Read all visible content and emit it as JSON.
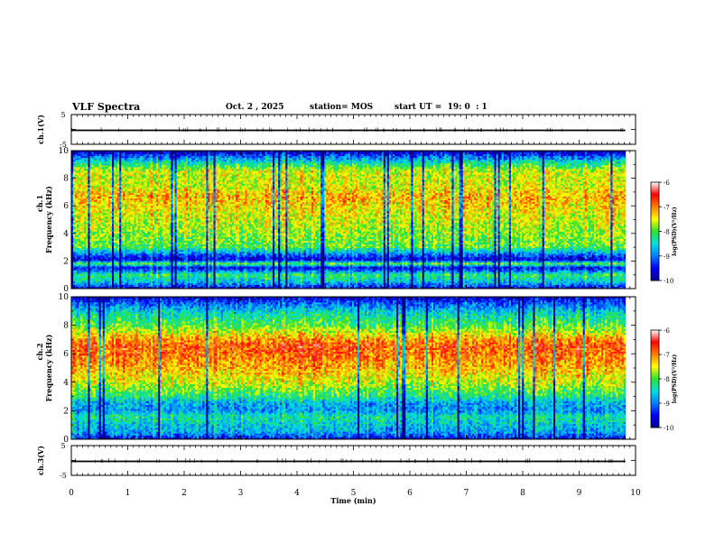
{
  "header": {
    "title": "VLF Spectra",
    "date": "Oct. 2 , 2025",
    "station": "station= MOS",
    "start": "start UT =  19: 0  : 1"
  },
  "chart_data": [
    {
      "type": "line",
      "title": "",
      "ylabel": "ch.1(V)",
      "xlim": [
        0,
        10
      ],
      "ylim": [
        -5,
        5
      ],
      "yticks": [
        "5",
        "-5"
      ],
      "series": [
        {
          "x": [
            0,
            9.82
          ],
          "values": [
            0,
            0
          ]
        }
      ]
    },
    {
      "type": "heatmap",
      "ylabel_top": "ch.1",
      "ylabel": "Frequency (kHz)",
      "xlim": [
        0,
        10
      ],
      "ylim": [
        0,
        10
      ],
      "data_xmax": 9.82,
      "yticks": [
        "0",
        "2",
        "4",
        "6",
        "8",
        "10"
      ],
      "colorbar": {
        "label": "log(PSD)(V²/Hz)",
        "ticks": [
          "-6",
          "-7",
          "-8",
          "-9",
          "-10"
        ],
        "range": [
          -10,
          -6
        ]
      },
      "profile": [
        {
          "f": 0.0,
          "v": -9.6
        },
        {
          "f": 0.5,
          "v": -8.6
        },
        {
          "f": 1.0,
          "v": -8.2
        },
        {
          "f": 1.5,
          "v": -9.6
        },
        {
          "f": 1.8,
          "v": -8.0
        },
        {
          "f": 2.1,
          "v": -9.7
        },
        {
          "f": 2.5,
          "v": -9.0
        },
        {
          "f": 3.0,
          "v": -8.0
        },
        {
          "f": 4.0,
          "v": -7.8
        },
        {
          "f": 5.0,
          "v": -7.6
        },
        {
          "f": 6.0,
          "v": -7.4
        },
        {
          "f": 6.6,
          "v": -7.2
        },
        {
          "f": 7.5,
          "v": -7.6
        },
        {
          "f": 8.5,
          "v": -7.6
        },
        {
          "f": 9.0,
          "v": -8.2
        },
        {
          "f": 9.5,
          "v": -9.0
        },
        {
          "f": 10.0,
          "v": -9.9
        }
      ]
    },
    {
      "type": "heatmap",
      "ylabel_top": "ch.2",
      "ylabel": "Frequency (kHz)",
      "xlim": [
        0,
        10
      ],
      "ylim": [
        0,
        10
      ],
      "data_xmax": 9.82,
      "yticks": [
        "0",
        "2",
        "4",
        "6",
        "8",
        "10"
      ],
      "colorbar": {
        "label": "log(PSD)(V²/Hz)",
        "ticks": [
          "-6",
          "-7",
          "-8",
          "-9",
          "-10"
        ],
        "range": [
          -10,
          -6
        ]
      },
      "profile": [
        {
          "f": 0.0,
          "v": -9.5
        },
        {
          "f": 0.5,
          "v": -8.8
        },
        {
          "f": 1.0,
          "v": -8.6
        },
        {
          "f": 1.6,
          "v": -8.3
        },
        {
          "f": 2.0,
          "v": -8.9
        },
        {
          "f": 2.6,
          "v": -8.7
        },
        {
          "f": 3.0,
          "v": -8.2
        },
        {
          "f": 4.0,
          "v": -7.6
        },
        {
          "f": 5.0,
          "v": -7.2
        },
        {
          "f": 6.0,
          "v": -6.9
        },
        {
          "f": 6.6,
          "v": -6.8
        },
        {
          "f": 7.2,
          "v": -7.3
        },
        {
          "f": 8.0,
          "v": -8.0
        },
        {
          "f": 8.8,
          "v": -8.4
        },
        {
          "f": 9.5,
          "v": -9.1
        },
        {
          "f": 10.0,
          "v": -9.7
        }
      ]
    },
    {
      "type": "line",
      "title": "",
      "ylabel": "ch.3(V)",
      "xlim": [
        0,
        10
      ],
      "ylim": [
        -5,
        5
      ],
      "yticks": [
        "5",
        "-5"
      ],
      "series": [
        {
          "x": [
            0,
            9.82
          ],
          "values": [
            0,
            0
          ]
        }
      ]
    }
  ],
  "x_axis": {
    "label": "Time (min)",
    "ticks": [
      "0",
      "1",
      "2",
      "3",
      "4",
      "5",
      "6",
      "7",
      "8",
      "9",
      "10"
    ]
  },
  "colormap": [
    "#00008c",
    "#0000ff",
    "#0080ff",
    "#00e0e0",
    "#30e030",
    "#ffff00",
    "#ff8000",
    "#ff0000",
    "#ffffff"
  ]
}
